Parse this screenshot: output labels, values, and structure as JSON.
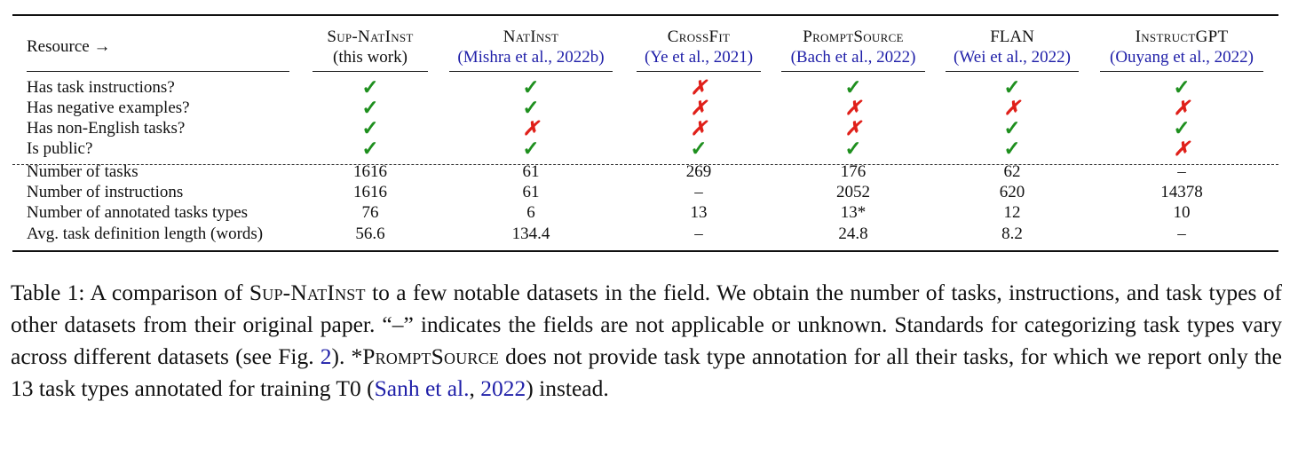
{
  "table": {
    "resource_header": "Resource →",
    "columns": [
      {
        "name": "Sup-NatInst",
        "sub": "(this work)"
      },
      {
        "name": "NatInst",
        "sub": "(Mishra et al., 2022b)"
      },
      {
        "name": "CrossFit",
        "sub": "(Ye et al., 2021)"
      },
      {
        "name": "PromptSource",
        "sub": "(Bach et al., 2022)"
      },
      {
        "name": "FLAN",
        "sub": "(Wei et al., 2022)"
      },
      {
        "name": "InstructGPT",
        "sub": "(Ouyang et al., 2022)"
      }
    ],
    "bool_rows": [
      {
        "label": "Has task instructions?",
        "values": [
          "✓",
          "✓",
          "✗",
          "✓",
          "✓",
          "✓"
        ]
      },
      {
        "label": "Has negative examples?",
        "values": [
          "✓",
          "✓",
          "✗",
          "✗",
          "✗",
          "✗"
        ]
      },
      {
        "label": "Has non-English tasks?",
        "values": [
          "✓",
          "✗",
          "✗",
          "✗",
          "✓",
          "✓"
        ]
      },
      {
        "label": "Is public?",
        "values": [
          "✓",
          "✓",
          "✓",
          "✓",
          "✓",
          "✗"
        ]
      }
    ],
    "num_rows": [
      {
        "label": "Number of tasks",
        "values": [
          "1616",
          "61",
          "269",
          "176",
          "62",
          "–"
        ]
      },
      {
        "label": "Number of instructions",
        "values": [
          "1616",
          "61",
          "–",
          "2052",
          "620",
          "14378"
        ]
      },
      {
        "label": "Number of annotated tasks types",
        "values": [
          "76",
          "6",
          "13",
          "13*",
          "12",
          "10"
        ]
      },
      {
        "label": "Avg. task definition length (words)",
        "values": [
          "56.6",
          "134.4",
          "–",
          "24.8",
          "8.2",
          "–"
        ]
      }
    ]
  },
  "caption": {
    "t1": "Table 1: A comparison of ",
    "sc1": "Sup-NatInst",
    "t2": " to a few notable datasets in the field. We obtain the number of tasks, instructions, and task types of other datasets from their original paper. “–” indicates the fields are not applicable or unknown. Standards for categorizing task types vary across different datasets (see Fig. ",
    "fig_ref": "2",
    "t3": "). *",
    "sc2": "PromptSource",
    "t4": " does not provide task type annotation for all their tasks, for which we report only the 13 task types annotated for training T0 (",
    "cite_name": "Sanh et al.",
    "t5": ", ",
    "cite_year": "2022",
    "t6": ") instead."
  },
  "colors": {
    "check": "#1e8f1e",
    "cross": "#e0201a",
    "citation": "#1f1fa8"
  }
}
